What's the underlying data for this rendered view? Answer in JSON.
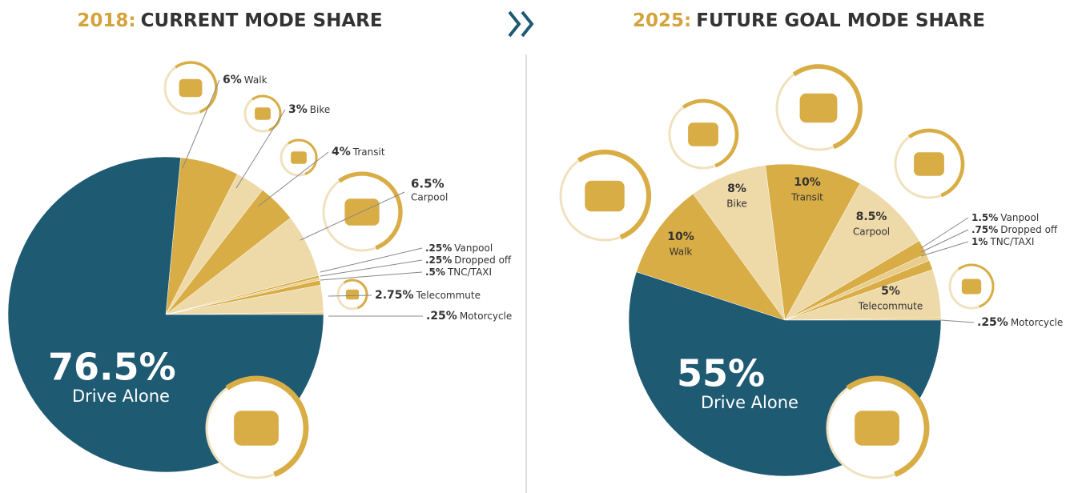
{
  "chart_data": [
    {
      "type": "pie",
      "year": "2018:",
      "title": "CURRENT MODE SHARE",
      "categories": [
        "Motorcycle",
        "Telecommute",
        "TNC/TAXI",
        "Dropped off",
        "Vanpool",
        "Carpool",
        "Transit",
        "Bike",
        "Walk",
        "Drive Alone"
      ],
      "values": [
        0.25,
        2.75,
        0.5,
        0.25,
        0.25,
        6.5,
        4,
        3,
        6,
        76.5
      ],
      "value_labels": [
        ".25%",
        "2.75%",
        ".5%",
        ".25%",
        ".25%",
        "6.5%",
        "4%",
        "3%",
        "6%",
        "76.5%"
      ],
      "colors": [
        "#e6c77e",
        "#eed9a8",
        "#d9ad45",
        "#e8cd8c",
        "#d9ad45",
        "#eed9a8",
        "#d9ad45",
        "#eed9a8",
        "#d9ad45",
        "#1f5a73"
      ]
    },
    {
      "type": "pie",
      "year": "2025:",
      "title": "FUTURE GOAL MODE SHARE",
      "categories": [
        "Motorcycle",
        "Telecommute",
        "TNC/TAXI",
        "Dropped off",
        "Vanpool",
        "Carpool",
        "Transit",
        "Bike",
        "Walk",
        "Drive Alone"
      ],
      "values": [
        0.25,
        5,
        1,
        0.75,
        1.5,
        8.5,
        10,
        8,
        10,
        55
      ],
      "value_labels": [
        ".25%",
        "5%",
        "1%",
        ".75%",
        "1.5%",
        "8.5%",
        "10%",
        "8%",
        "10%",
        "55%"
      ],
      "colors": [
        "#e6c77e",
        "#eed9a8",
        "#d9ad45",
        "#e8cd8c",
        "#d9ad45",
        "#eed9a8",
        "#d9ad45",
        "#eed9a8",
        "#d9ad45",
        "#1f5a73"
      ]
    }
  ]
}
